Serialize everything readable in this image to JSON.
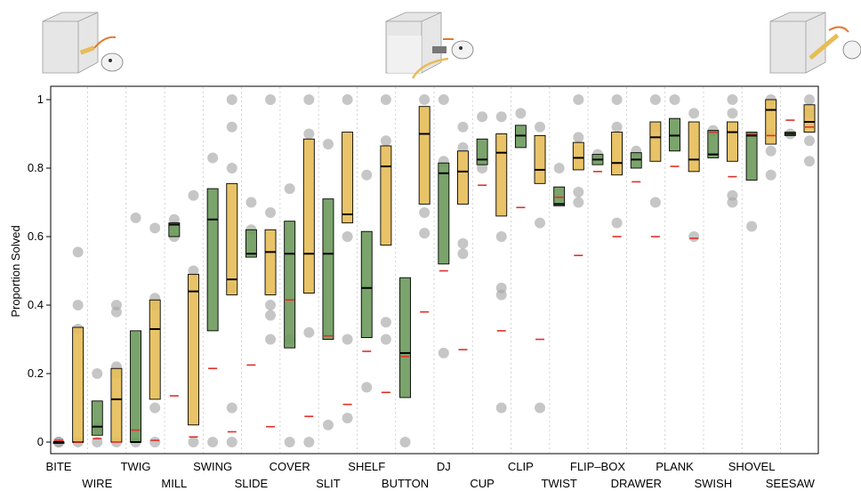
{
  "chart_data": {
    "type": "box",
    "ylabel": "Proportion Solved",
    "ylim": [
      0,
      1
    ],
    "yticks": [
      0,
      0.2,
      0.4,
      0.6,
      0.8,
      1
    ],
    "ytick_labels": [
      "0",
      "0.2",
      "0.4",
      "0.6",
      "0.8",
      "1"
    ],
    "colors": {
      "green": "#6b9a5b",
      "yellow": "#e7bd57",
      "median": "#000000",
      "reference": "#e0302a",
      "points": "#a8a8a8"
    },
    "categories": [
      {
        "label": "BITE",
        "color": "yellow",
        "q1": 0.0,
        "median": 0.0,
        "q3": 0.0,
        "ref": 0.005,
        "points": [
          0.0,
          0.0,
          0.0
        ]
      },
      {
        "label": "",
        "color": "yellow",
        "q1": 0.0,
        "median": 0.0,
        "q3": 0.335,
        "ref": 0.0,
        "points": [
          0.555,
          0.4,
          0.33,
          0.0
        ]
      },
      {
        "label": "WIRE",
        "color": "green",
        "q1": 0.02,
        "median": 0.045,
        "q3": 0.12,
        "ref": 0.01,
        "points": [
          0.2,
          0.0,
          0.04
        ]
      },
      {
        "label": "",
        "color": "yellow",
        "q1": 0.0,
        "median": 0.125,
        "q3": 0.215,
        "ref": 0.0,
        "points": [
          0.4,
          0.38,
          0.22,
          0.2,
          0.0
        ]
      },
      {
        "label": "TWIG",
        "color": "green",
        "q1": 0.0,
        "median": 0.0,
        "q3": 0.325,
        "ref": 0.035,
        "points": [
          0.655,
          0.0
        ]
      },
      {
        "label": "",
        "color": "yellow",
        "q1": 0.125,
        "median": 0.33,
        "q3": 0.415,
        "ref": 0.005,
        "points": [
          0.625,
          0.42,
          0.4,
          0.1,
          0.0
        ]
      },
      {
        "label": "MILL",
        "color": "green",
        "q1": 0.6,
        "median": 0.635,
        "q3": 0.64,
        "ref": 0.135,
        "points": [
          0.65,
          0.63,
          0.6
        ]
      },
      {
        "label": "",
        "color": "yellow",
        "q1": 0.05,
        "median": 0.44,
        "q3": 0.49,
        "ref": 0.015,
        "points": [
          0.72,
          0.5,
          0.0
        ]
      },
      {
        "label": "SWING",
        "color": "green",
        "q1": 0.325,
        "median": 0.65,
        "q3": 0.74,
        "ref": 0.215,
        "points": [
          0.83,
          0.0
        ]
      },
      {
        "label": "",
        "color": "yellow",
        "q1": 0.43,
        "median": 0.475,
        "q3": 0.755,
        "ref": 0.03,
        "points": [
          1.0,
          0.92,
          0.8,
          0.45,
          0.1,
          0.0
        ]
      },
      {
        "label": "SLIDE",
        "color": "green",
        "q1": 0.54,
        "median": 0.55,
        "q3": 0.62,
        "ref": 0.225,
        "points": [
          0.7,
          0.62
        ]
      },
      {
        "label": "",
        "color": "yellow",
        "q1": 0.43,
        "median": 0.555,
        "q3": 0.62,
        "ref": 0.045,
        "points": [
          1.0,
          0.67,
          0.4,
          0.37,
          0.3
        ]
      },
      {
        "label": "COVER",
        "color": "green",
        "q1": 0.275,
        "median": 0.55,
        "q3": 0.645,
        "ref": 0.415,
        "points": [
          0.74,
          0.3,
          0.0
        ]
      },
      {
        "label": "",
        "color": "yellow",
        "q1": 0.435,
        "median": 0.55,
        "q3": 0.885,
        "ref": 0.075,
        "points": [
          1.0,
          0.9,
          0.32,
          0.0
        ]
      },
      {
        "label": "SLIT",
        "color": "green",
        "q1": 0.3,
        "median": 0.55,
        "q3": 0.71,
        "ref": 0.31,
        "points": [
          0.87,
          0.05
        ]
      },
      {
        "label": "",
        "color": "yellow",
        "q1": 0.64,
        "median": 0.665,
        "q3": 0.905,
        "ref": 0.11,
        "points": [
          1.0,
          0.6,
          0.3,
          0.07
        ]
      },
      {
        "label": "SHELF",
        "color": "green",
        "q1": 0.305,
        "median": 0.45,
        "q3": 0.615,
        "ref": 0.265,
        "points": [
          0.78,
          0.16
        ]
      },
      {
        "label": "",
        "color": "yellow",
        "q1": 0.575,
        "median": 0.805,
        "q3": 0.865,
        "ref": 0.145,
        "points": [
          1.0,
          0.88,
          0.35,
          0.3
        ]
      },
      {
        "label": "BUTTON",
        "color": "green",
        "q1": 0.13,
        "median": 0.26,
        "q3": 0.48,
        "ref": 0.25,
        "points": [
          0.0
        ]
      },
      {
        "label": "",
        "color": "yellow",
        "q1": 0.695,
        "median": 0.9,
        "q3": 0.98,
        "ref": 0.38,
        "points": [
          1.0,
          0.67,
          0.61
        ]
      },
      {
        "label": "DJ",
        "color": "green",
        "q1": 0.52,
        "median": 0.785,
        "q3": 0.815,
        "ref": 0.5,
        "points": [
          1.0,
          0.82,
          0.26
        ]
      },
      {
        "label": "",
        "color": "yellow",
        "q1": 0.695,
        "median": 0.79,
        "q3": 0.85,
        "ref": 0.27,
        "points": [
          0.92,
          0.86,
          0.58,
          0.55
        ]
      },
      {
        "label": "CUP",
        "color": "green",
        "q1": 0.81,
        "median": 0.825,
        "q3": 0.885,
        "ref": 0.75,
        "points": [
          0.95,
          0.8
        ]
      },
      {
        "label": "",
        "color": "yellow",
        "q1": 0.66,
        "median": 0.845,
        "q3": 0.9,
        "ref": 0.325,
        "points": [
          0.95,
          0.6,
          0.45,
          0.43,
          0.1
        ]
      },
      {
        "label": "CLIP",
        "color": "green",
        "q1": 0.86,
        "median": 0.895,
        "q3": 0.925,
        "ref": 0.685,
        "points": [
          0.96
        ]
      },
      {
        "label": "",
        "color": "yellow",
        "q1": 0.755,
        "median": 0.795,
        "q3": 0.895,
        "ref": 0.3,
        "points": [
          0.92,
          0.64,
          0.1
        ]
      },
      {
        "label": "TWIST",
        "color": "green",
        "q1": 0.69,
        "median": 0.695,
        "q3": 0.745,
        "ref": 0.715,
        "points": [
          0.8
        ]
      },
      {
        "label": "",
        "color": "yellow",
        "q1": 0.795,
        "median": 0.83,
        "q3": 0.875,
        "ref": 0.545,
        "points": [
          1.0,
          0.89,
          0.73,
          0.7
        ]
      },
      {
        "label": "FLIP–BOX",
        "color": "green",
        "q1": 0.81,
        "median": 0.825,
        "q3": 0.84,
        "ref": 0.79,
        "points": [
          0.84
        ]
      },
      {
        "label": "",
        "color": "yellow",
        "q1": 0.78,
        "median": 0.815,
        "q3": 0.905,
        "ref": 0.6,
        "points": [
          1.0,
          0.92,
          0.64
        ]
      },
      {
        "label": "DRAWER",
        "color": "green",
        "q1": 0.8,
        "median": 0.825,
        "q3": 0.845,
        "ref": 0.76,
        "points": [
          0.85
        ]
      },
      {
        "label": "",
        "color": "yellow",
        "q1": 0.82,
        "median": 0.89,
        "q3": 0.935,
        "ref": 0.6,
        "points": [
          1.0,
          0.92,
          0.7
        ]
      },
      {
        "label": "PLANK",
        "color": "green",
        "q1": 0.85,
        "median": 0.895,
        "q3": 0.945,
        "ref": 0.805,
        "points": [
          1.0
        ]
      },
      {
        "label": "",
        "color": "yellow",
        "q1": 0.79,
        "median": 0.825,
        "q3": 0.935,
        "ref": 0.595,
        "points": [
          0.96,
          0.6
        ]
      },
      {
        "label": "SWISH",
        "color": "green",
        "q1": 0.83,
        "median": 0.84,
        "q3": 0.91,
        "ref": 0.905,
        "points": [
          0.91
        ]
      },
      {
        "label": "",
        "color": "yellow",
        "q1": 0.82,
        "median": 0.905,
        "q3": 0.935,
        "ref": 0.775,
        "points": [
          1.0,
          0.96,
          0.72,
          0.7
        ]
      },
      {
        "label": "SHOVEL",
        "color": "green",
        "q1": 0.765,
        "median": 0.895,
        "q3": 0.905,
        "ref": 0.9,
        "points": [
          0.63
        ]
      },
      {
        "label": "",
        "color": "yellow",
        "q1": 0.87,
        "median": 0.97,
        "q3": 1.0,
        "ref": 0.895,
        "points": [
          1.0,
          0.9,
          0.85,
          0.78
        ]
      },
      {
        "label": "SEESAW",
        "color": "green",
        "q1": 0.895,
        "median": 0.9,
        "q3": 0.905,
        "ref": 0.94,
        "points": [
          0.9
        ]
      },
      {
        "label": "",
        "color": "yellow",
        "q1": 0.905,
        "median": 0.935,
        "q3": 0.985,
        "ref": 0.92,
        "points": [
          1.0,
          0.96,
          0.88,
          0.82
        ]
      }
    ]
  }
}
